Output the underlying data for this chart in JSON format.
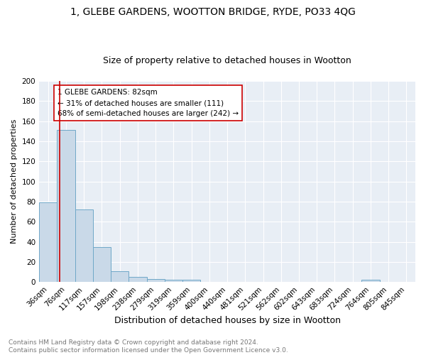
{
  "title": "1, GLEBE GARDENS, WOOTTON BRIDGE, RYDE, PO33 4QG",
  "subtitle": "Size of property relative to detached houses in Wootton",
  "xlabel": "Distribution of detached houses by size in Wootton",
  "ylabel": "Number of detached properties",
  "footer": "Contains HM Land Registry data © Crown copyright and database right 2024.\nContains public sector information licensed under the Open Government Licence v3.0.",
  "bin_labels": [
    "36sqm",
    "76sqm",
    "117sqm",
    "157sqm",
    "198sqm",
    "238sqm",
    "279sqm",
    "319sqm",
    "359sqm",
    "400sqm",
    "440sqm",
    "481sqm",
    "521sqm",
    "562sqm",
    "602sqm",
    "643sqm",
    "683sqm",
    "724sqm",
    "764sqm",
    "805sqm",
    "845sqm"
  ],
  "bar_heights": [
    79,
    151,
    72,
    35,
    11,
    5,
    3,
    2,
    2,
    0,
    0,
    0,
    0,
    0,
    0,
    0,
    0,
    0,
    2,
    0,
    0
  ],
  "bar_color": "#c9d9e8",
  "bar_edge_color": "#6fa8c8",
  "vline_color": "#cc0000",
  "annotation_text": "1 GLEBE GARDENS: 82sqm\n← 31% of detached houses are smaller (111)\n68% of semi-detached houses are larger (242) →",
  "annotation_box_color": "#ffffff",
  "annotation_box_edge": "#cc0000",
  "ylim": [
    0,
    200
  ],
  "yticks": [
    0,
    20,
    40,
    60,
    80,
    100,
    120,
    140,
    160,
    180,
    200
  ],
  "background_color": "#e8eef5",
  "title_fontsize": 10,
  "subtitle_fontsize": 9,
  "xlabel_fontsize": 9,
  "ylabel_fontsize": 8,
  "tick_fontsize": 7.5,
  "annotation_fontsize": 7.5,
  "footer_fontsize": 6.5
}
